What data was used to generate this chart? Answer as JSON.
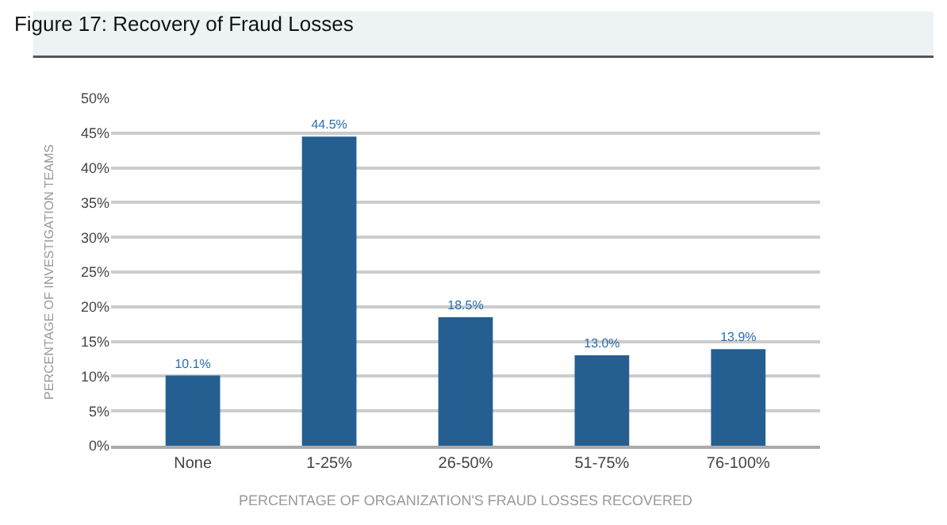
{
  "chart_data": {
    "type": "bar",
    "title": "Figure 17: Recovery of Fraud Losses",
    "categories": [
      "None",
      "1-25%",
      "26-50%",
      "51-75%",
      "76-100%"
    ],
    "values": [
      10.1,
      44.5,
      18.5,
      13.0,
      13.9
    ],
    "value_labels": [
      "10.1%",
      "44.5%",
      "18.5%",
      "13.0%",
      "13.9%"
    ],
    "color": "#255f91",
    "xlabel": "PERCENTAGE OF ORGANIZATION'S FRAUD LOSSES RECOVERED",
    "ylabel": "PERCENTAGE OF INVESTIGATION TEAMS",
    "ylim": [
      0,
      50
    ],
    "yticks": [
      {
        "value": 0,
        "label": "0%"
      },
      {
        "value": 5,
        "label": "5%"
      },
      {
        "value": 10,
        "label": "10%"
      },
      {
        "value": 15,
        "label": "15%"
      },
      {
        "value": 20,
        "label": "20%"
      },
      {
        "value": 25,
        "label": "25%"
      },
      {
        "value": 30,
        "label": "30%"
      },
      {
        "value": 35,
        "label": "35%"
      },
      {
        "value": 40,
        "label": "40%"
      },
      {
        "value": 45,
        "label": "45%"
      },
      {
        "value": 50,
        "label": "50%"
      }
    ],
    "grid": "y"
  }
}
